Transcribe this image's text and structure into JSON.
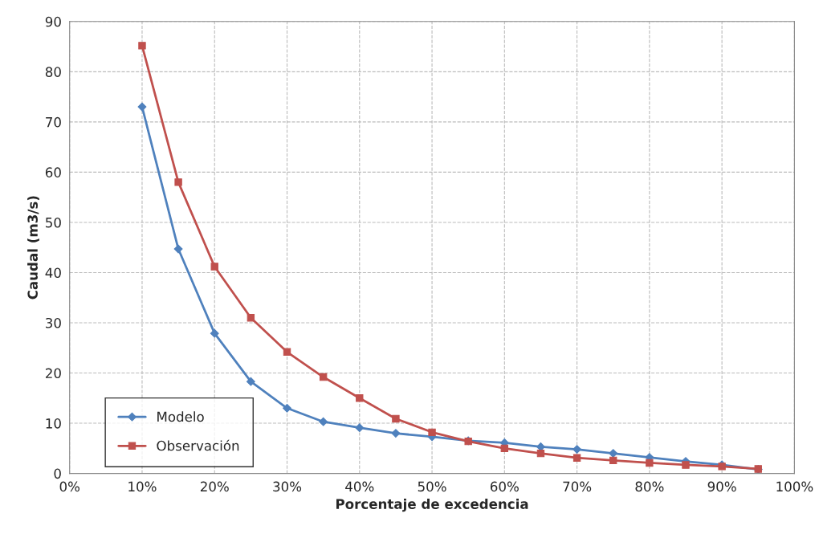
{
  "chart_data": {
    "type": "line",
    "xlabel": "Porcentaje de excedencia",
    "ylabel": "Caudal (m3/s)",
    "x": [
      10,
      15,
      20,
      25,
      30,
      35,
      40,
      45,
      50,
      55,
      60,
      65,
      70,
      75,
      80,
      85,
      90,
      95
    ],
    "series": [
      {
        "name": "Modelo",
        "color": "#4f81bd",
        "marker": "diamond",
        "values": [
          73,
          44.7,
          27.9,
          18.3,
          13,
          10.3,
          9.1,
          8,
          7.3,
          6.5,
          6.1,
          5.3,
          4.8,
          4,
          3.2,
          2.4,
          1.7,
          0.8
        ]
      },
      {
        "name": "Observación",
        "color": "#c0504d",
        "marker": "square",
        "values": [
          85.2,
          58,
          41.2,
          31,
          24.2,
          19.2,
          15,
          10.9,
          8.2,
          6.4,
          5,
          4,
          3.1,
          2.6,
          2.1,
          1.7,
          1.4,
          0.9
        ]
      }
    ],
    "xlim": [
      0,
      100
    ],
    "xticks": [
      {
        "value": 0,
        "label": "0%"
      },
      {
        "value": 10,
        "label": "10%"
      },
      {
        "value": 20,
        "label": "20%"
      },
      {
        "value": 30,
        "label": "30%"
      },
      {
        "value": 40,
        "label": "40%"
      },
      {
        "value": 50,
        "label": "50%"
      },
      {
        "value": 60,
        "label": "60%"
      },
      {
        "value": 70,
        "label": "70%"
      },
      {
        "value": 80,
        "label": "80%"
      },
      {
        "value": 90,
        "label": "90%"
      },
      {
        "value": 100,
        "label": "100%"
      }
    ],
    "ylim": [
      0,
      90
    ],
    "yticks": [
      0,
      10,
      20,
      30,
      40,
      50,
      60,
      70,
      80,
      90
    ],
    "grid": true,
    "legend": "bottom left",
    "line_style": "solid"
  }
}
